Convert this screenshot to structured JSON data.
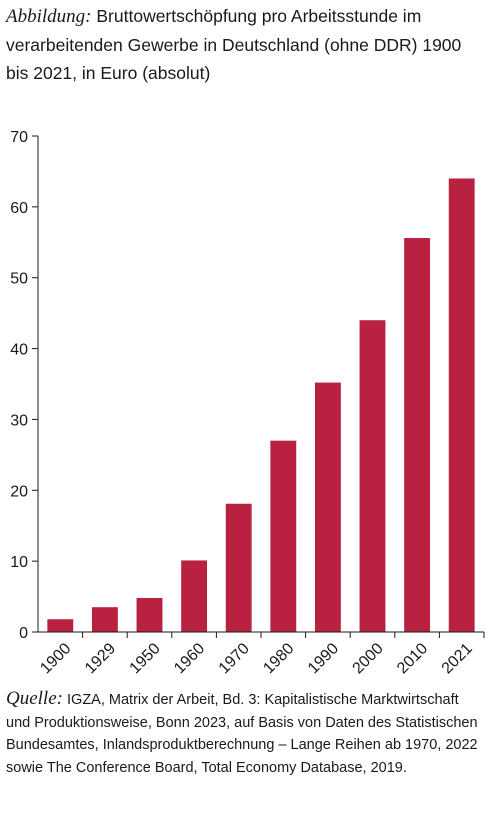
{
  "title": {
    "lead": "Abbildung:",
    "text": "Bruttowertschöpfung pro Arbeitsstunde im verarbeitenden Gewerbe in Deutschland (ohne DDR) 1900 bis 2021, in Euro (absolut)"
  },
  "source": {
    "lead": "Quelle:",
    "text": "IGZA, Matrix der Arbeit, Bd. 3: Kapitalistische Marktwirtschaft und Produktionsweise, Bonn 2023, auf Basis von Daten des Statistischen Bundesamtes, Inlandsproduktberechnung – Lange Reihen ab 1970, 2022 sowie The Conference Board, Total Economy Database, 2019."
  },
  "chart_data": {
    "type": "bar",
    "categories": [
      "1900",
      "1929",
      "1950",
      "1960",
      "1970",
      "1980",
      "1990",
      "2000",
      "2010",
      "2021"
    ],
    "values": [
      1.8,
      3.5,
      4.8,
      10.1,
      18.1,
      27.0,
      35.2,
      44.0,
      55.6,
      64.0
    ],
    "yticks": [
      0,
      10,
      20,
      30,
      40,
      50,
      60,
      70
    ],
    "ylim": [
      0,
      70
    ],
    "bar_color": "#b8213f",
    "grid": false,
    "legend": "none"
  }
}
